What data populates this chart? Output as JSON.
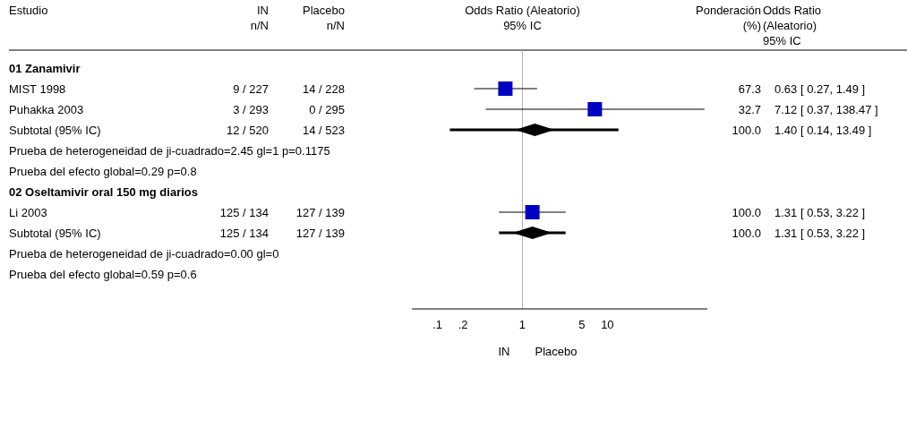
{
  "chart_data": {
    "type": "scatter",
    "orientation": "horizontal",
    "xlim": [
      0.05,
      150
    ],
    "log": "x",
    "xticks": [
      {
        "value": 0.1,
        "label": ".1"
      },
      {
        "value": 0.2,
        "label": ".2"
      },
      1,
      5,
      10
    ],
    "categories": [
      "01 Zanamivir",
      "MIST 1998",
      "Puhakka 2003",
      "Subtotal (95% IC)",
      "Prueba de heterogeneidad de ji-cuadrado=2.45 gl=1 p=0.1175",
      "Prueba del efecto global=0.29 p=0.8",
      "02 Oseltamivir oral 150 mg diarios",
      "Li 2003",
      "Subtotal (95% IC)",
      "Prueba de heterogeneidad de ji-cuadrado=0.00 gl=0",
      "Prueba del efecto global=0.59 p=0.6"
    ],
    "series": [
      {
        "type": "scatter",
        "marker": "square",
        "color": "#0000c0",
        "values": [
          null,
          0.63,
          7.12,
          null,
          null,
          null,
          null,
          1.31,
          null,
          null,
          null
        ],
        "errors": [
          null,
          [
            0.27,
            1.49
          ],
          [
            0.37,
            138.47
          ],
          null,
          null,
          null,
          null,
          [
            0.53,
            3.22
          ],
          null,
          null,
          null
        ]
      },
      {
        "type": "scatter",
        "marker": "diamond",
        "color": "#000000",
        "values": [
          null,
          null,
          null,
          1.4,
          null,
          null,
          null,
          null,
          1.31,
          null,
          null
        ],
        "errors": [
          null,
          null,
          null,
          [
            0.14,
            13.49
          ],
          null,
          null,
          null,
          null,
          [
            0.53,
            3.22
          ],
          null,
          null
        ]
      }
    ],
    "ref_lines": [
      {
        "axis": "x",
        "value": 1,
        "color": "#b0b0b0"
      }
    ],
    "annotations": [
      "Estudio",
      "IN\nn/N",
      "Placebo\nn/N",
      "Odds Ratio (Aleatorio)\n95% IC",
      "Ponderación\n(%)",
      "Odds Ratio\n(Aleatorio)\n95% IC",
      "IN",
      "Placebo",
      "9 / 227",
      "14 / 228",
      "67.3",
      "0.63 [ 0.27, 1.49 ]",
      "3 / 293",
      "0 / 295",
      "32.7",
      "7.12 [ 0.37, 138.47 ]",
      "12 / 520",
      "14 / 523",
      "100.0",
      "1.40 [ 0.14, 13.49 ]",
      "125 / 134",
      "127 / 139",
      "100.0",
      "1.31 [ 0.53, 3.22 ]",
      "125 / 134",
      "127 / 139",
      "100.0",
      "1.31 [ 0.53, 3.22 ]"
    ]
  }
}
